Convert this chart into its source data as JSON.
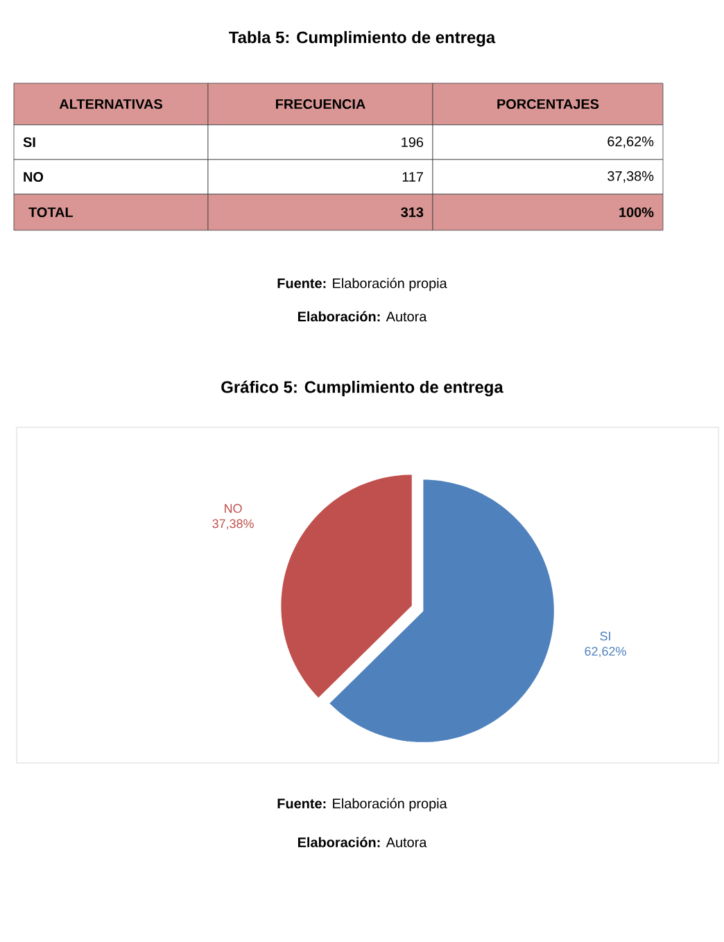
{
  "chart_data": {
    "type": "pie",
    "title": "Gráfico 5:  Cumplimiento de entrega",
    "categories": [
      "SI",
      "NO"
    ],
    "values": [
      62.62,
      37.38
    ],
    "colors": [
      "#4f81bd",
      "#c0504d"
    ],
    "value_labels": [
      "62,62%",
      "37,38%"
    ],
    "annotations": [
      "Tabla 5: Cumplimiento de entrega",
      "ALTERNATIVAS",
      "FRECUENCIA",
      "PORCENTAJES",
      "SI",
      "196",
      "62,62%",
      "NO",
      "117",
      "37,38%",
      "TOTAL",
      "313",
      "100%",
      "**Fuente:** Elaboración propia",
      "**Elaboración:** Autora",
      "**Fuente:** Elaboración propia",
      "**Elaboración:** Autora"
    ]
  }
}
